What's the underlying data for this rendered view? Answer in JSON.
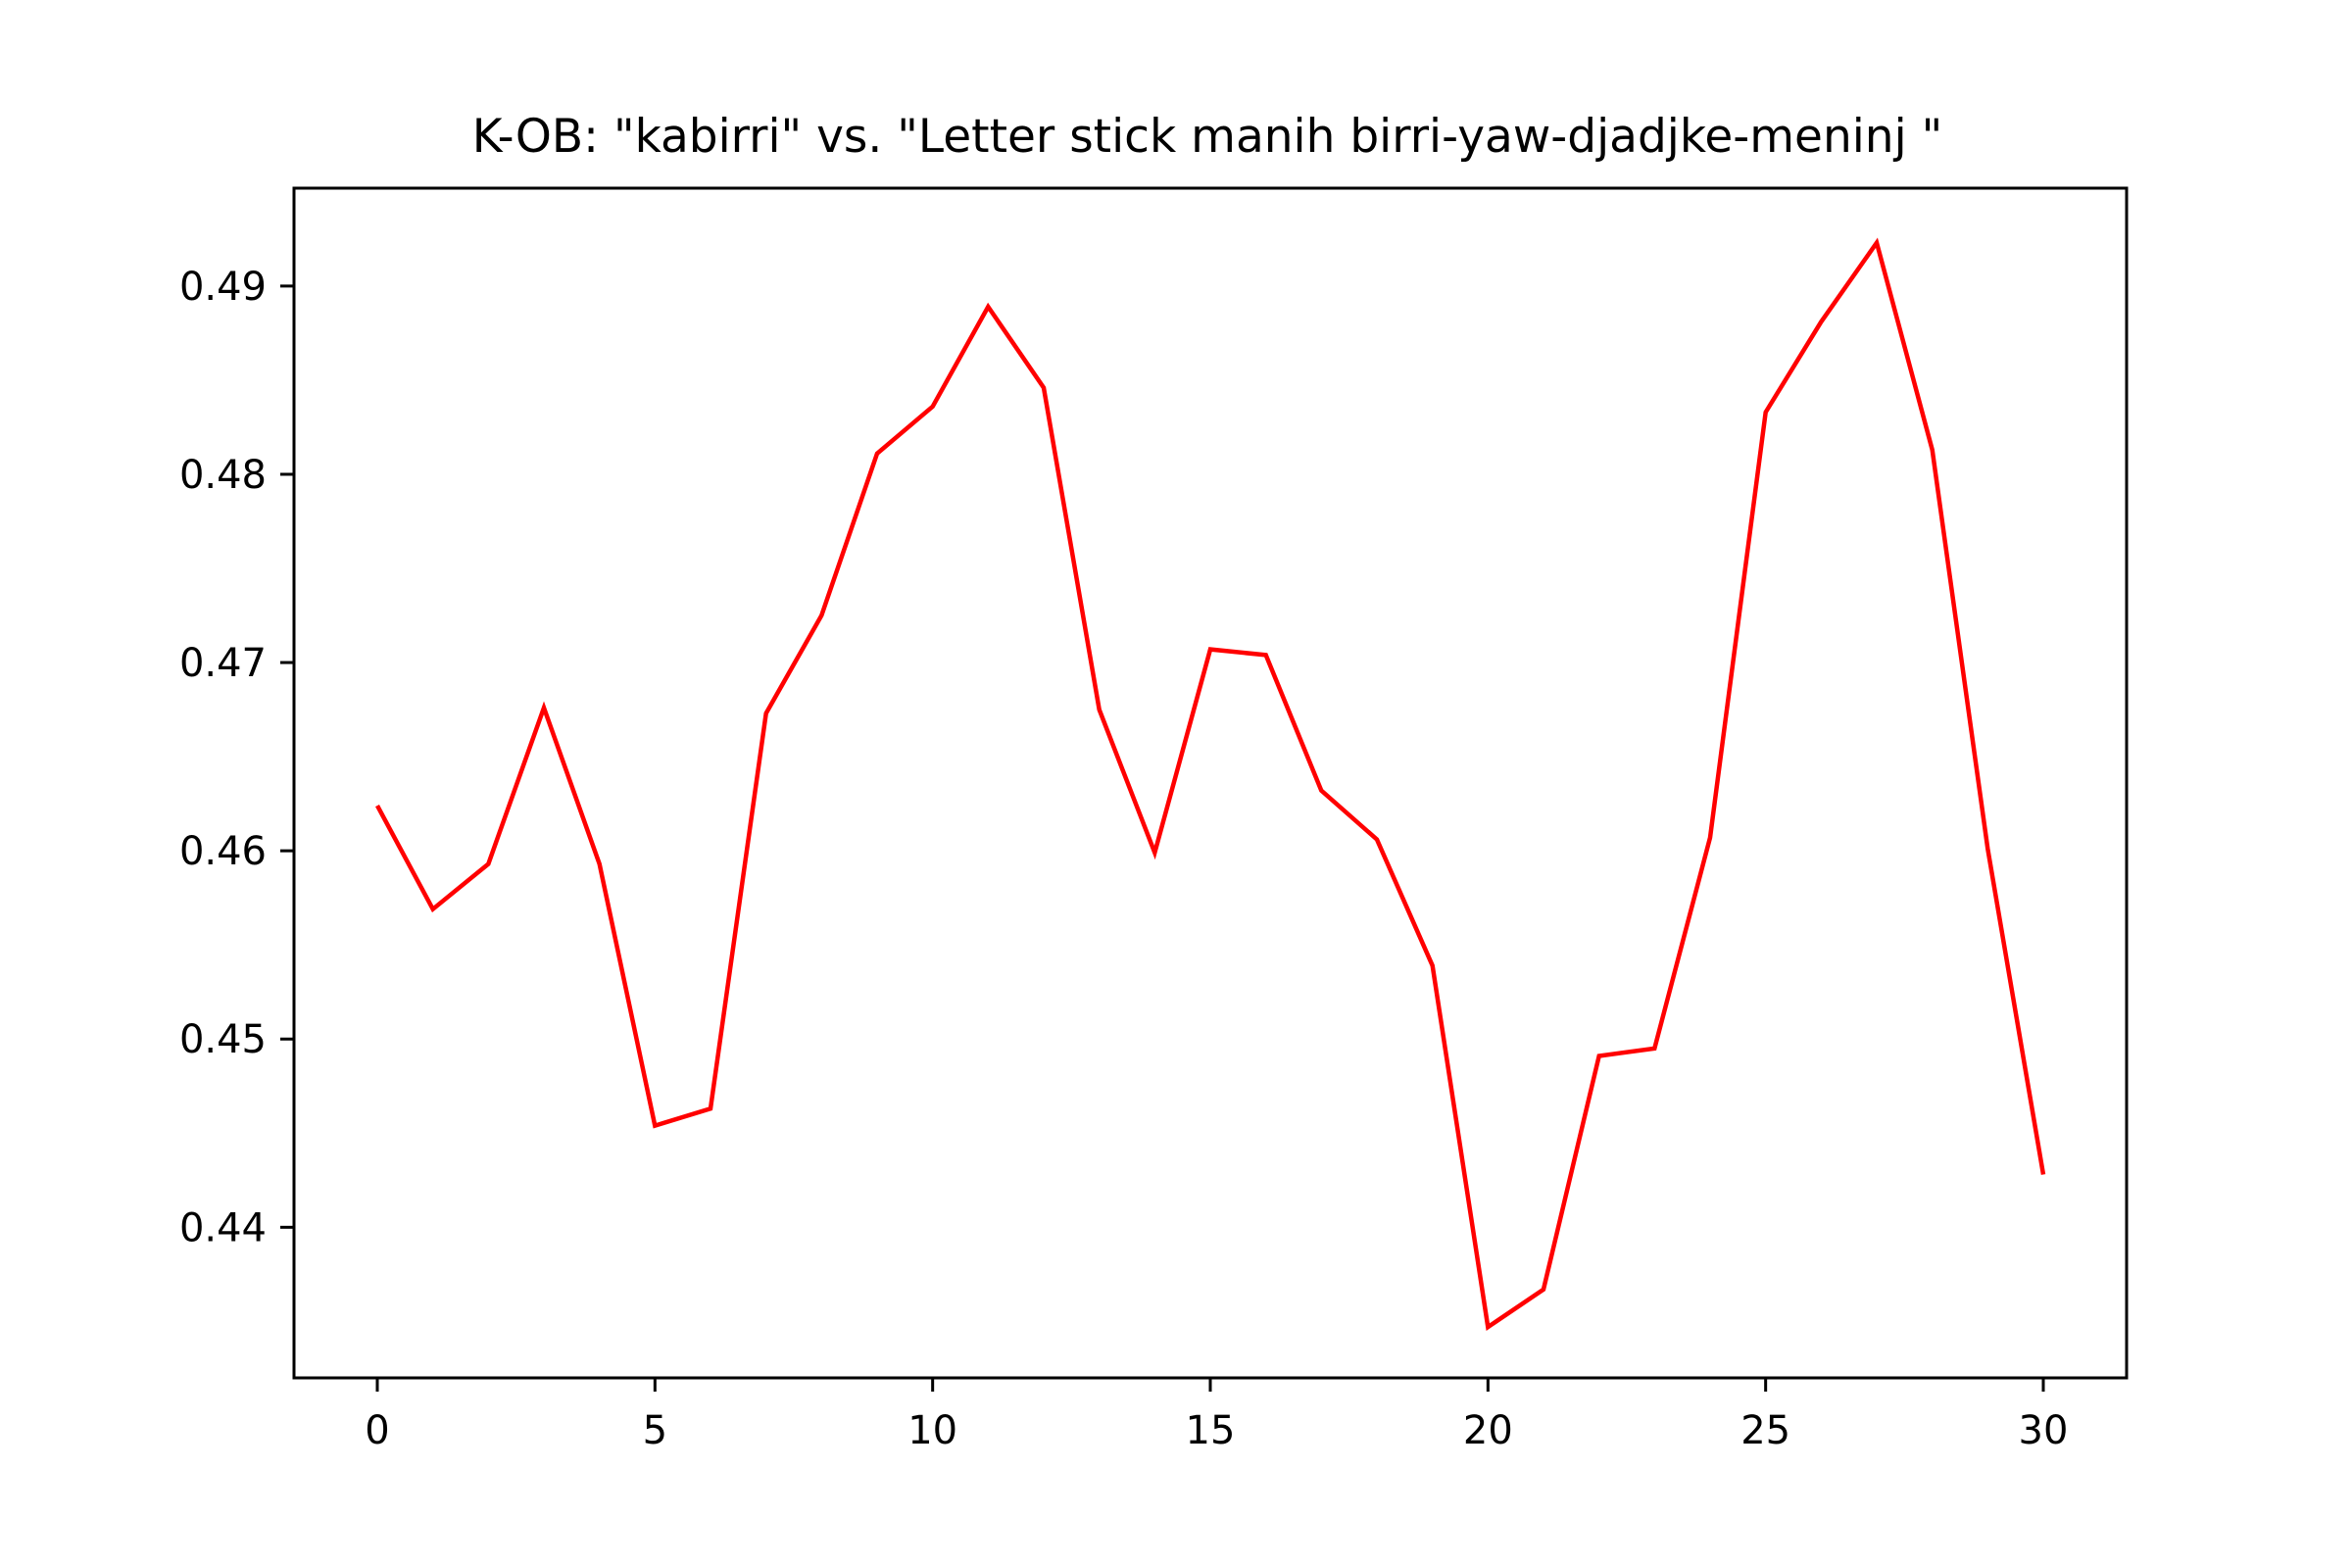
{
  "chart_data": {
    "type": "line",
    "title": "K-OB: \"kabirri\" vs. \"Letter stick manih birri-yaw-djadjke-meninj \"",
    "xlabel": "",
    "ylabel": "",
    "xlim": [
      -1.5,
      31.5
    ],
    "ylim": [
      0.432,
      0.4952
    ],
    "x_ticks": [
      0,
      5,
      10,
      15,
      20,
      25,
      30
    ],
    "y_ticks": [
      0.44,
      0.45,
      0.46,
      0.47,
      0.48,
      0.49
    ],
    "grid": false,
    "legend": "none",
    "series": [
      {
        "color": "#ff0000",
        "x": [
          0,
          1,
          2,
          3,
          4,
          5,
          6,
          7,
          8,
          9,
          10,
          11,
          12,
          13,
          14,
          15,
          16,
          17,
          18,
          19,
          20,
          21,
          22,
          23,
          24,
          25,
          26,
          27,
          28,
          29,
          30
        ],
        "values": [
          0.4624,
          0.4569,
          0.4593,
          0.4676,
          0.4593,
          0.4454,
          0.4463,
          0.4673,
          0.4725,
          0.4811,
          0.4836,
          0.4889,
          0.4846,
          0.4675,
          0.4599,
          0.4707,
          0.4704,
          0.4632,
          0.4606,
          0.4539,
          0.4347,
          0.4367,
          0.4491,
          0.4495,
          0.4607,
          0.4833,
          0.4881,
          0.4923,
          0.4813,
          0.4601,
          0.4428
        ]
      }
    ]
  }
}
